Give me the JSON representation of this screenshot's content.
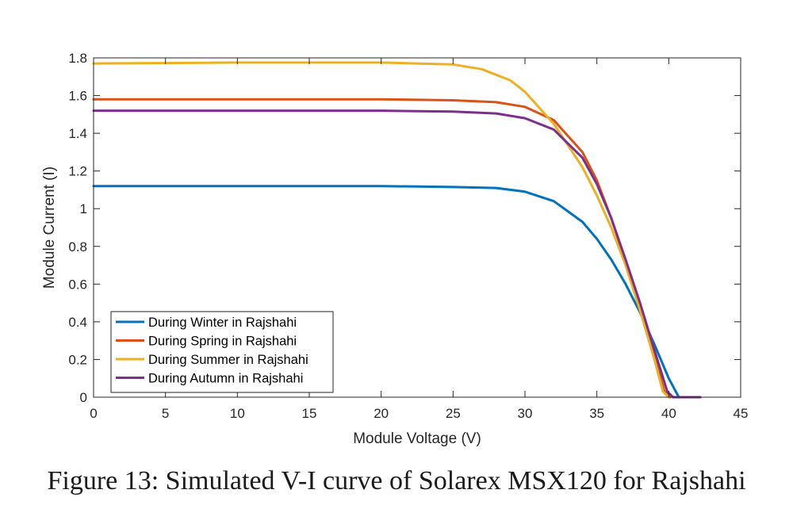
{
  "caption": "Figure 13: Simulated V-I curve of Solarex MSX120 for Rajshahi",
  "chart_data": {
    "type": "line",
    "xlabel": "Module Voltage (V)",
    "ylabel": "Module Current (I)",
    "xlim": [
      0,
      45
    ],
    "ylim": [
      0,
      1.8
    ],
    "xticks": [
      "0",
      "5",
      "10",
      "15",
      "20",
      "25",
      "30",
      "35",
      "40",
      "45"
    ],
    "yticks": [
      "0",
      "0.2",
      "0.4",
      "0.6",
      "0.8",
      "1",
      "1.2",
      "1.4",
      "1.6",
      "1.8"
    ],
    "grid": false,
    "legend_position": "bottom-left",
    "series": [
      {
        "name": "During Winter in Rajshahi",
        "color": "#0072BD",
        "x": [
          0,
          10,
          20,
          25,
          28,
          30,
          32,
          34,
          35,
          36,
          37,
          38,
          39,
          40,
          40.7,
          42
        ],
        "y": [
          1.12,
          1.12,
          1.12,
          1.115,
          1.11,
          1.09,
          1.04,
          0.93,
          0.84,
          0.73,
          0.6,
          0.45,
          0.28,
          0.1,
          0,
          0
        ]
      },
      {
        "name": "During Spring in Rajshahi",
        "color": "#D95319",
        "x": [
          0,
          10,
          20,
          25,
          28,
          30,
          32,
          34,
          35,
          36,
          37,
          38,
          39,
          39.7,
          40.1
        ],
        "y": [
          1.58,
          1.58,
          1.58,
          1.575,
          1.565,
          1.54,
          1.47,
          1.3,
          1.15,
          0.95,
          0.72,
          0.47,
          0.22,
          0.03,
          0
        ]
      },
      {
        "name": "During Summer in Rajshahi",
        "color": "#EDB120",
        "x": [
          0,
          10,
          20,
          25,
          27,
          29,
          30,
          32,
          34,
          35,
          36,
          37,
          38,
          39,
          39.6,
          40
        ],
        "y": [
          1.77,
          1.775,
          1.775,
          1.765,
          1.74,
          1.68,
          1.62,
          1.45,
          1.22,
          1.07,
          0.9,
          0.7,
          0.46,
          0.2,
          0.03,
          0
        ]
      },
      {
        "name": "During Autumn in Rajshahi",
        "color": "#7E2F8E",
        "x": [
          0,
          10,
          20,
          25,
          28,
          30,
          32,
          34,
          35,
          36,
          37,
          38,
          39,
          39.9,
          40.3,
          42.2
        ],
        "y": [
          1.52,
          1.52,
          1.52,
          1.515,
          1.505,
          1.48,
          1.42,
          1.27,
          1.13,
          0.95,
          0.73,
          0.5,
          0.25,
          0.03,
          0,
          0
        ]
      }
    ]
  }
}
